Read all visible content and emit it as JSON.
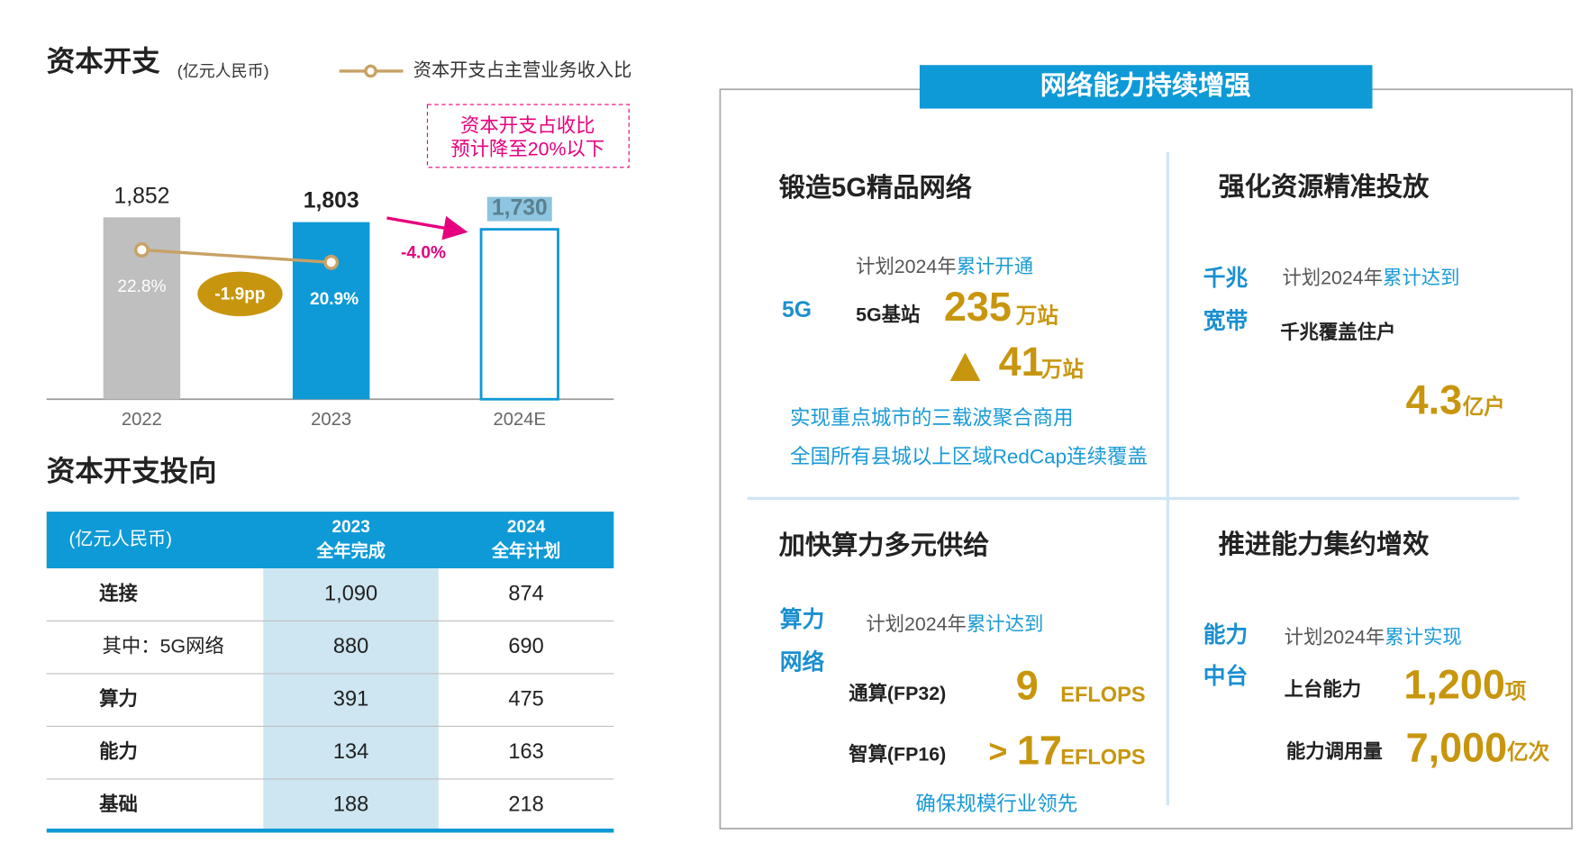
{
  "chart_data": {
    "type": "bar",
    "title": "资本开支",
    "subtitle": "(亿元人民币)",
    "categories": [
      "2022",
      "2023",
      "2024E"
    ],
    "series": [
      {
        "color": "#0e9ad7",
        "colors": [
          "#bfbfbf",
          "#0e9ad7",
          "#ffffff"
        ],
        "values": [
          1852,
          1803,
          1730
        ],
        "value_labels": [
          "1,852",
          "1,803",
          "1,730"
        ]
      },
      {
        "type": "line",
        "name": "资本开支占主营业务收入比",
        "color": "#c8a165",
        "axis": "y2",
        "values": [
          22.8,
          20.9,
          null
        ],
        "value_labels": [
          "22.8%",
          "20.9%",
          null
        ]
      }
    ],
    "ylim": [
      0,
      2000
    ],
    "y2lim": [
      0,
      30
    ],
    "annotations": [
      "资本开支占收比",
      "预计降至20%以下",
      "-1.9pp",
      "-4.0%"
    ]
  },
  "table": {
    "title": "资本开支投向",
    "header": [
      [
        "(亿元人民币)"
      ],
      [
        "2023",
        "全年完成"
      ],
      [
        "2024",
        "全年计划"
      ]
    ],
    "rows": [
      [
        "连接",
        "1,090",
        "874"
      ],
      [
        "其中：5G网络",
        "880",
        "690"
      ],
      [
        "算力",
        "391",
        "475"
      ],
      [
        "能力",
        "134",
        "163"
      ],
      [
        "基础",
        "188",
        "218"
      ]
    ]
  },
  "panel": {
    "title": "网络能力持续增强",
    "q1": {
      "heading": "锻造5G精品网络",
      "side": [
        "5G"
      ],
      "plan": [
        "计划2024年",
        "累计开通"
      ],
      "label": "5G基站",
      "value": "235",
      "unit": "万站",
      "delta": "41",
      "delta_unit": "万站",
      "notes": [
        "实现重点城市的三载波聚合商用",
        "全国所有县城以上区域RedCap连续覆盖"
      ]
    },
    "q2": {
      "heading": "强化资源精准投放",
      "side": [
        "千兆",
        "宽带"
      ],
      "plan": [
        "计划2024年",
        "累计达到"
      ],
      "label": "千兆覆盖住户",
      "value": "4.3",
      "unit": "亿户"
    },
    "q3": {
      "heading": "加快算力多元供给",
      "side": [
        "算力",
        "网络"
      ],
      "plan": [
        "计划2024年",
        "累计达到"
      ],
      "items": [
        {
          "label": "通算(FP32)",
          "value": "9",
          "unit": "EFLOPS"
        },
        {
          "label": "智算(FP16)",
          "prefix": ">",
          "value": "17",
          "unit": "EFLOPS"
        }
      ],
      "note": "确保规模行业领先"
    },
    "q4": {
      "heading": "推进能力集约增效",
      "side": [
        "能力",
        "中台"
      ],
      "plan": [
        "计划2024年",
        "累计实现"
      ],
      "items": [
        {
          "label": "上台能力",
          "value": "1,200",
          "unit": "项"
        },
        {
          "label": "能力调用量",
          "value": "7,000",
          "unit": "亿次"
        }
      ]
    }
  }
}
